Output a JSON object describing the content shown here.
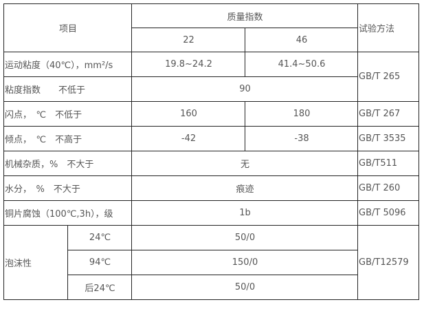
{
  "header": {
    "item": "项目",
    "quality": "质量指数",
    "grade_22": "22",
    "grade_46": "46",
    "method": "试验方法"
  },
  "rows": [
    {
      "label": "运动粘度（40℃），mm²/s",
      "v22": "19.8~24.2",
      "v46": "41.4~50.6"
    },
    {
      "label": "粘度指数　　不低于",
      "value": "90"
    },
    {
      "label": "闪点，　℃　不低于",
      "v22": "160",
      "v46": "180",
      "method": "GB/T 267"
    },
    {
      "label": "倾点，　℃　不高于",
      "v22": "-42",
      "v46": "-38",
      "method": "GB/T 3535"
    },
    {
      "label": "机械杂质，%　不大于",
      "value": "无",
      "method": "GB/T511"
    },
    {
      "label": "水分，　%　不大于",
      "value": "痕迹",
      "method": "GB/T 260"
    },
    {
      "label": "铜片腐蚀（100℃,3h），级",
      "value": "1b",
      "method": "GB/T 5096"
    }
  ],
  "viscosity_method": "GB/T 265",
  "foam": {
    "label": "泡沫性",
    "method": "GB/T12579",
    "sub": [
      {
        "temp": "24℃",
        "value": "50/0"
      },
      {
        "temp": "94℃",
        "value": "150/0"
      },
      {
        "temp": "后24℃",
        "value": "50/0"
      }
    ]
  }
}
